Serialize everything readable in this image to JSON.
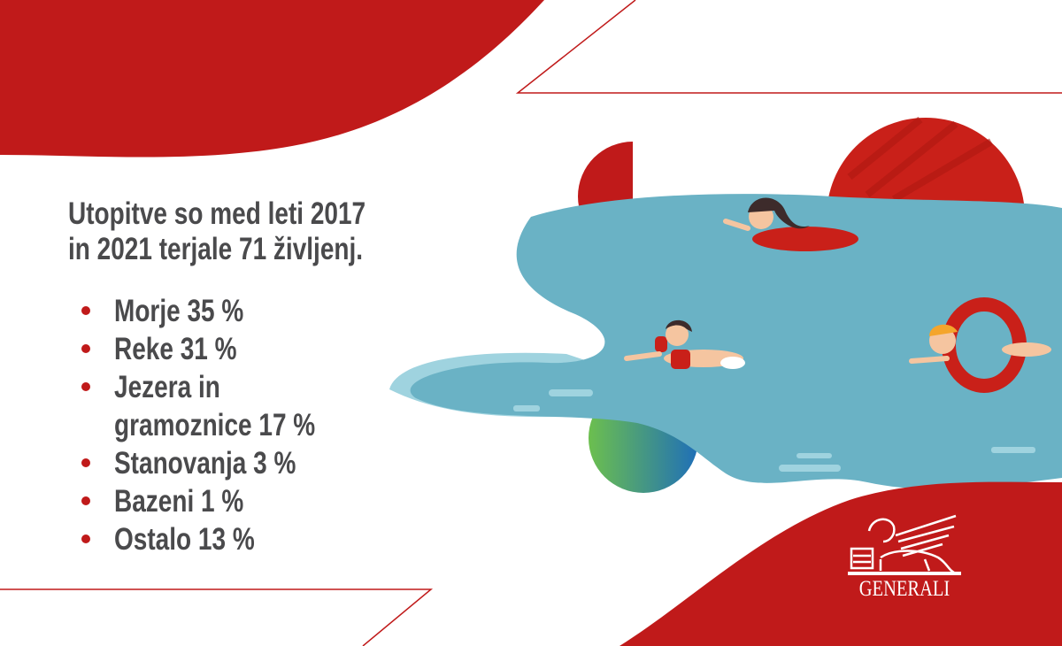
{
  "headline": "Utopitve so med leti 2017\nin 2021 terjale 71 življenj.",
  "headline_lines": [
    "Utopitve so med leti 2017",
    "in 2021 terjale 71 življenj."
  ],
  "stats": [
    {
      "label": "Morje 35 %"
    },
    {
      "label": "Reke 31 %"
    },
    {
      "label": "Jezera in\ngramoznice 17 %"
    },
    {
      "label": "Stanovanja 3 %"
    },
    {
      "label": "Bazeni 1 %"
    },
    {
      "label": "Ostalo 13 %"
    }
  ],
  "logo": {
    "text": "GENERALI",
    "icon": "winged-lion-icon"
  },
  "colors": {
    "brand_red": "#c01a1a",
    "text": "#4a4a4c",
    "water": "#6ab2c5",
    "water_light": "#9fd3df"
  }
}
